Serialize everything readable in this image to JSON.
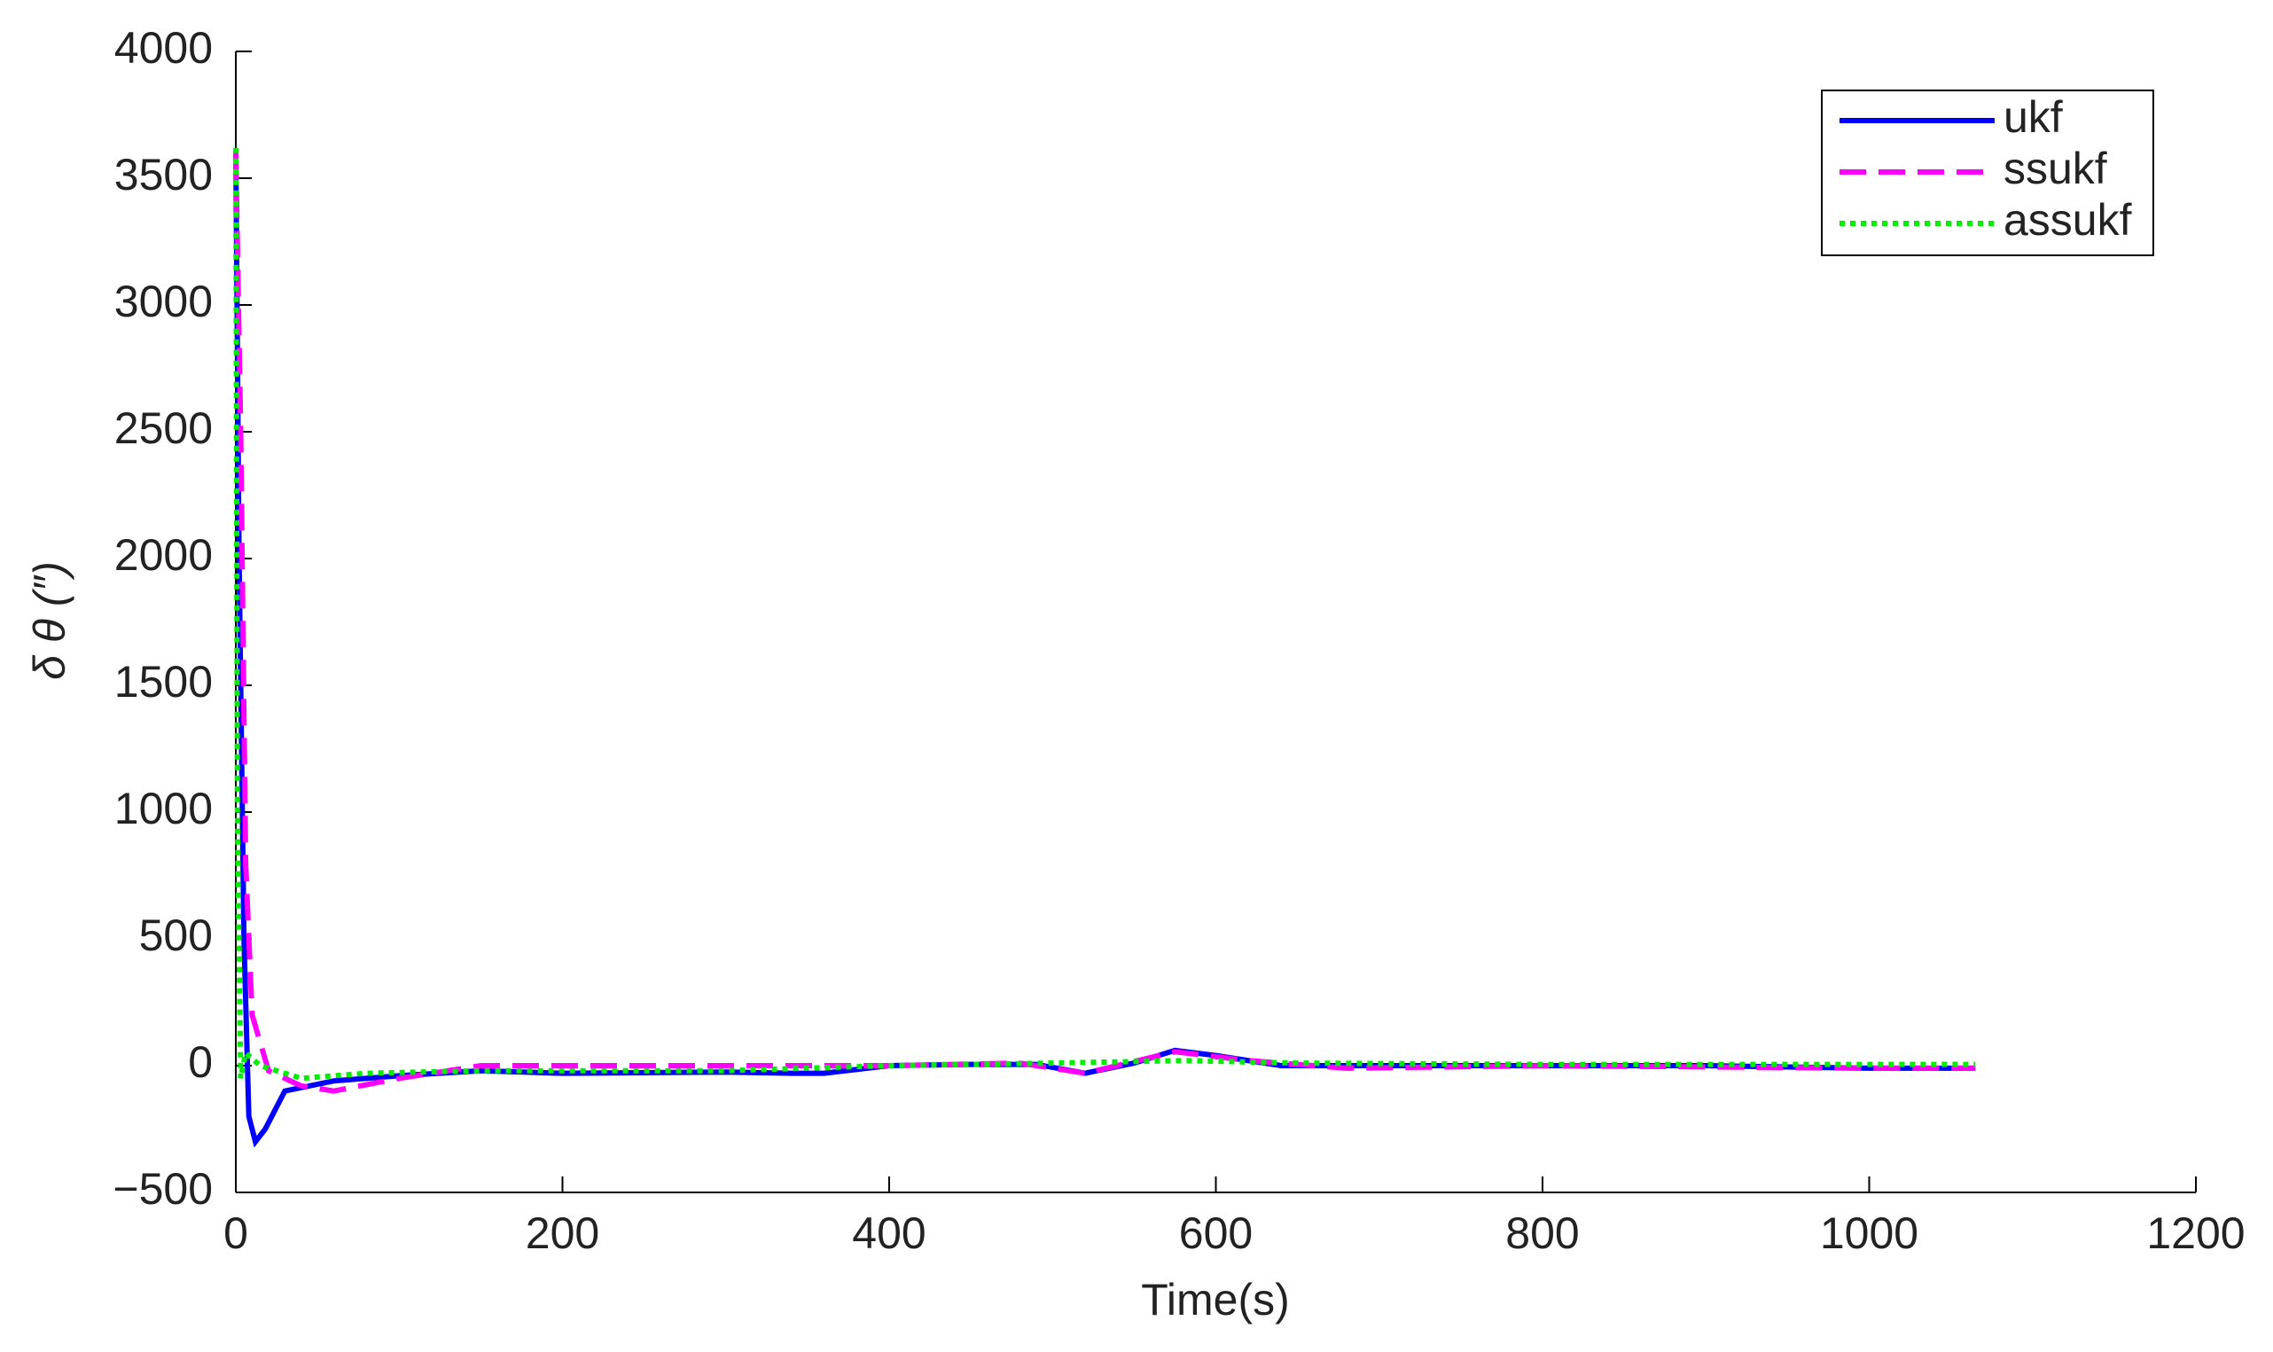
{
  "chart_data": {
    "type": "line",
    "xlabel": "Time(s)",
    "ylabel": "δ θ (″)",
    "xlim": [
      0,
      1200
    ],
    "xticks": [
      0,
      200,
      400,
      600,
      800,
      1000,
      1200
    ],
    "ylim": [
      -500,
      4000
    ],
    "yticks": [
      {
        "value": -500,
        "label": "−500"
      },
      0,
      500,
      1000,
      1500,
      2000,
      2500,
      3000,
      3500,
      4000
    ],
    "legend": "upper right",
    "series": [
      {
        "name": "ukf",
        "color": "#0000ff",
        "line_style": "solid",
        "x": [
          0,
          2,
          5,
          8,
          12,
          18,
          30,
          60,
          100,
          150,
          200,
          300,
          340,
          360,
          400,
          450,
          490,
          520,
          550,
          575,
          600,
          640,
          700,
          800,
          900,
          1000,
          1065
        ],
        "values": [
          3600,
          2000,
          500,
          -200,
          -300,
          -250,
          -100,
          -60,
          -40,
          -20,
          -30,
          -25,
          -30,
          -30,
          0,
          5,
          5,
          -30,
          10,
          60,
          40,
          0,
          0,
          0,
          0,
          -10,
          -10
        ]
      },
      {
        "name": "ssukf",
        "color": "#ff00ff",
        "line_style": "dashed",
        "x": [
          0,
          3,
          6,
          10,
          20,
          40,
          60,
          100,
          150,
          200,
          300,
          400,
          480,
          520,
          575,
          620,
          680,
          800,
          900,
          1000,
          1065
        ],
        "values": [
          3600,
          2500,
          800,
          200,
          -20,
          -80,
          -100,
          -50,
          0,
          0,
          0,
          0,
          10,
          -30,
          55,
          20,
          -10,
          0,
          -5,
          -10,
          -10
        ]
      },
      {
        "name": "assukf",
        "color": "#00ee00",
        "line_style": "dotted",
        "x": [
          0,
          1,
          3,
          6,
          15,
          40,
          80,
          150,
          300,
          400,
          500,
          580,
          650,
          800,
          1065
        ],
        "values": [
          3620,
          1000,
          -50,
          50,
          0,
          -50,
          -30,
          -20,
          -20,
          0,
          10,
          20,
          10,
          5,
          5
        ]
      }
    ]
  }
}
